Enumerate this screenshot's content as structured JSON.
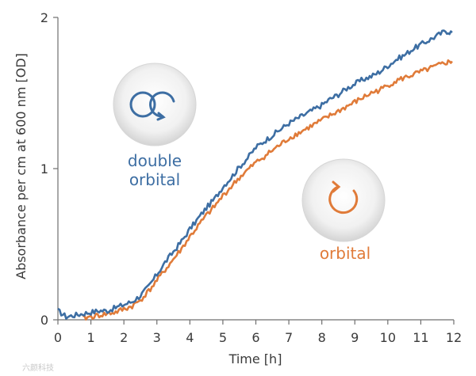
{
  "chart_data": {
    "type": "line",
    "xlabel": "Time [h]",
    "ylabel": "Absorbance per cm at 600 nm [OD]",
    "xlim": [
      0,
      12
    ],
    "ylim": [
      0,
      2
    ],
    "x_ticks": [
      "0",
      "1",
      "2",
      "3",
      "4",
      "5",
      "6",
      "7",
      "8",
      "9",
      "10",
      "11",
      "12"
    ],
    "y_ticks": [
      "0",
      "1",
      "2"
    ],
    "grid": false,
    "series": [
      {
        "name": "double orbital",
        "label_lines": [
          "double",
          "orbital"
        ],
        "icon": "double-orbital-icon",
        "color": "#3d6ea3",
        "x": [
          0,
          0.25,
          0.5,
          0.75,
          1,
          1.25,
          1.5,
          1.75,
          2,
          2.25,
          2.5,
          2.75,
          3,
          3.25,
          3.5,
          3.75,
          4,
          4.25,
          4.5,
          4.75,
          5,
          5.25,
          5.5,
          5.75,
          6,
          6.25,
          6.5,
          6.75,
          7,
          7.25,
          7.5,
          7.75,
          8,
          8.25,
          8.5,
          8.75,
          9,
          9.25,
          9.5,
          9.75,
          10,
          10.25,
          10.5,
          10.75,
          11,
          11.25,
          11.5,
          11.75,
          11.95
        ],
        "values": [
          0.06,
          0.02,
          0.03,
          0.04,
          0.05,
          0.06,
          0.06,
          0.08,
          0.1,
          0.12,
          0.16,
          0.22,
          0.3,
          0.38,
          0.45,
          0.52,
          0.6,
          0.67,
          0.74,
          0.8,
          0.88,
          0.94,
          1.01,
          1.07,
          1.14,
          1.18,
          1.22,
          1.26,
          1.3,
          1.33,
          1.36,
          1.39,
          1.42,
          1.46,
          1.49,
          1.53,
          1.56,
          1.59,
          1.61,
          1.64,
          1.68,
          1.72,
          1.75,
          1.79,
          1.82,
          1.85,
          1.88,
          1.91,
          1.9
        ]
      },
      {
        "name": "orbital",
        "label_lines": [
          "orbital"
        ],
        "icon": "orbital-icon",
        "color": "#e07b39",
        "x": [
          0.75,
          1,
          1.25,
          1.5,
          1.75,
          2,
          2.25,
          2.5,
          2.75,
          3,
          3.25,
          3.5,
          3.75,
          4,
          4.25,
          4.5,
          4.75,
          5,
          5.25,
          5.5,
          5.75,
          6,
          6.25,
          6.5,
          6.75,
          7,
          7.25,
          7.5,
          7.75,
          8,
          8.25,
          8.5,
          8.75,
          9,
          9.25,
          9.5,
          9.75,
          10,
          10.25,
          10.5,
          10.75,
          11,
          11.25,
          11.5,
          11.75,
          11.95
        ],
        "values": [
          0.01,
          0.02,
          0.03,
          0.04,
          0.05,
          0.07,
          0.09,
          0.13,
          0.19,
          0.26,
          0.33,
          0.4,
          0.47,
          0.55,
          0.62,
          0.69,
          0.75,
          0.82,
          0.88,
          0.94,
          0.99,
          1.04,
          1.08,
          1.12,
          1.16,
          1.2,
          1.23,
          1.26,
          1.29,
          1.32,
          1.35,
          1.38,
          1.41,
          1.44,
          1.47,
          1.5,
          1.52,
          1.55,
          1.58,
          1.6,
          1.62,
          1.64,
          1.66,
          1.68,
          1.7,
          1.71
        ]
      }
    ]
  },
  "watermark": "六颜科技"
}
